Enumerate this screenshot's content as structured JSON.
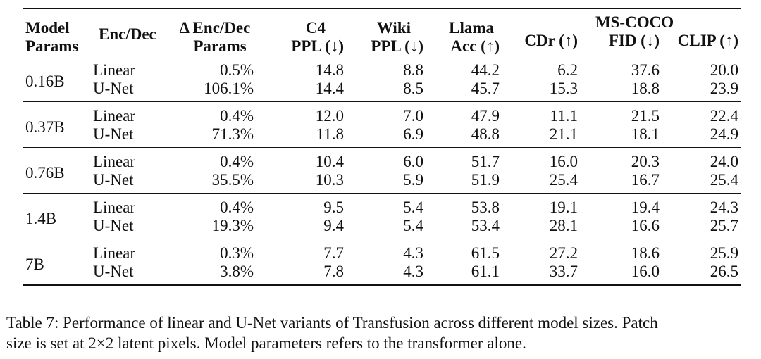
{
  "table": {
    "headers": {
      "model_params": [
        "Model",
        "Params"
      ],
      "enc_dec": "Enc/Dec",
      "delta_params": [
        "Δ Enc/Dec",
        "Params"
      ],
      "c4": [
        "C4",
        "PPL (↓)"
      ],
      "wiki": [
        "Wiki",
        "PPL (↓)"
      ],
      "llama": [
        "Llama",
        "Acc (↑)"
      ],
      "mscoco": "MS-COCO",
      "cdr": "CDr (↑)",
      "fid": "FID (↓)",
      "clip": "CLIP (↑)"
    },
    "groups": [
      {
        "params": "0.16B",
        "rows": [
          {
            "encdec": "Linear",
            "delta": "0.5%",
            "c4": "14.8",
            "wiki": "8.8",
            "llama": "44.2",
            "cdr": "6.2",
            "fid": "37.6",
            "clip": "20.0"
          },
          {
            "encdec": "U-Net",
            "delta": "106.1%",
            "c4": "14.4",
            "wiki": "8.5",
            "llama": "45.7",
            "cdr": "15.3",
            "fid": "18.8",
            "clip": "23.9"
          }
        ]
      },
      {
        "params": "0.37B",
        "rows": [
          {
            "encdec": "Linear",
            "delta": "0.4%",
            "c4": "12.0",
            "wiki": "7.0",
            "llama": "47.9",
            "cdr": "11.1",
            "fid": "21.5",
            "clip": "22.4"
          },
          {
            "encdec": "U-Net",
            "delta": "71.3%",
            "c4": "11.8",
            "wiki": "6.9",
            "llama": "48.8",
            "cdr": "21.1",
            "fid": "18.1",
            "clip": "24.9"
          }
        ]
      },
      {
        "params": "0.76B",
        "rows": [
          {
            "encdec": "Linear",
            "delta": "0.4%",
            "c4": "10.4",
            "wiki": "6.0",
            "llama": "51.7",
            "cdr": "16.0",
            "fid": "20.3",
            "clip": "24.0"
          },
          {
            "encdec": "U-Net",
            "delta": "35.5%",
            "c4": "10.3",
            "wiki": "5.9",
            "llama": "51.9",
            "cdr": "25.4",
            "fid": "16.7",
            "clip": "25.4"
          }
        ]
      },
      {
        "params": "1.4B",
        "rows": [
          {
            "encdec": "Linear",
            "delta": "0.4%",
            "c4": "9.5",
            "wiki": "5.4",
            "llama": "53.8",
            "cdr": "19.1",
            "fid": "19.4",
            "clip": "24.3"
          },
          {
            "encdec": "U-Net",
            "delta": "19.3%",
            "c4": "9.4",
            "wiki": "5.4",
            "llama": "53.4",
            "cdr": "28.1",
            "fid": "16.6",
            "clip": "25.7"
          }
        ]
      },
      {
        "params": "7B",
        "rows": [
          {
            "encdec": "Linear",
            "delta": "0.3%",
            "c4": "7.7",
            "wiki": "4.3",
            "llama": "61.5",
            "cdr": "27.2",
            "fid": "18.6",
            "clip": "25.9"
          },
          {
            "encdec": "U-Net",
            "delta": "3.8%",
            "c4": "7.8",
            "wiki": "4.3",
            "llama": "61.1",
            "cdr": "33.7",
            "fid": "16.0",
            "clip": "26.5"
          }
        ]
      }
    ]
  },
  "caption": {
    "line1": "Table 7: Performance of linear and U-Net variants of Transfusion across different model sizes. Patch",
    "line2": "size is set at 2×2 latent pixels. Model parameters refers to the transformer alone."
  }
}
